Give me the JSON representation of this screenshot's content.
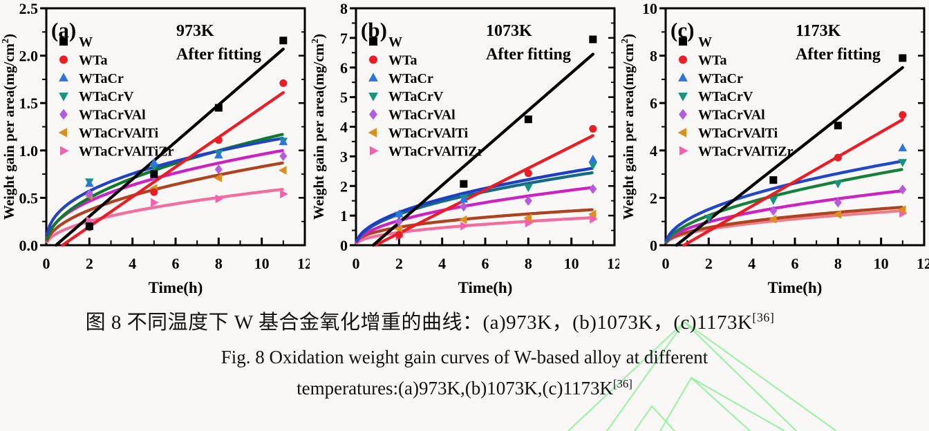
{
  "figure": {
    "caption_zh": "图 8 不同温度下 W 基合金氧化增重的曲线：(a)973K，(b)1073K，(c)1173K",
    "caption_en_line1": "Fig. 8 Oxidation weight gain curves of W-based alloy at different",
    "caption_en_line2": "temperatures:(a)973K,(b)1073K,(c)1173K",
    "caption_ref": "[36]"
  },
  "watermark": {
    "color": "#8df09b",
    "lines": [
      "878,624 990,466 1152,624",
      "990,466 1210,624",
      "990,466 822,624",
      "955,624 1000,547 1085,624",
      "1000,547 1135,624",
      "918,624 943,588 976,624"
    ]
  },
  "chart_data": [
    {
      "type": "line",
      "panel_label": "(a)",
      "title": "973K",
      "subtitle": "After fitting",
      "xlabel": "Time(h)",
      "ylabel_main": "Weight gain per area(mg/cm",
      "ylabel_sup": "2",
      "ylabel_close": ")",
      "xlim": [
        0,
        12
      ],
      "ylim": [
        0,
        2.5
      ],
      "xticks": [
        0,
        2,
        4,
        6,
        8,
        10,
        12
      ],
      "yticks": [
        0,
        0.5,
        1,
        1.5,
        2,
        2.5
      ],
      "ytick_labels": [
        "0.0",
        "0.5",
        "1.0",
        "1.5",
        "2.0",
        "2.5"
      ],
      "x_minor_step": 1,
      "y_minor_step": 0.25,
      "series": [
        {
          "name": "W",
          "marker": "square",
          "marker_color": "#000000",
          "fit_color": "#000000",
          "fit": {
            "type": "linear",
            "x_start": 0.45,
            "x_end": 11,
            "y_end": 2.07
          },
          "x": [
            2,
            5,
            8,
            11
          ],
          "y": [
            0.2,
            0.75,
            1.45,
            2.16
          ]
        },
        {
          "name": "WTa",
          "marker": "circle",
          "marker_color": "#ea1c24",
          "fit_color": "#ea1c24",
          "fit": {
            "type": "linear",
            "x_start": 0.75,
            "x_end": 11,
            "y_end": 1.61
          },
          "x": [
            2,
            5,
            8,
            11
          ],
          "y": [
            0.19,
            0.56,
            1.11,
            1.71
          ]
        },
        {
          "name": "WTaCr",
          "marker": "triangle-up",
          "marker_color": "#2e74e0",
          "fit_color": "#2244c4",
          "fit": {
            "type": "power",
            "a": 0.433,
            "b": 0.4
          },
          "x": [
            2,
            5,
            8,
            11
          ],
          "y": [
            0.65,
            0.87,
            0.95,
            1.09
          ]
        },
        {
          "name": "WTaCrV",
          "marker": "triangle-down",
          "marker_color": "#15967c",
          "fit_color": "#0c7b2e",
          "fit": {
            "type": "power",
            "a": 0.353,
            "b": 0.5
          },
          "x": [
            2,
            5,
            8,
            11
          ],
          "y": [
            0.67,
            0.83,
            0.97,
            1.1
          ]
        },
        {
          "name": "WTaCrVAl",
          "marker": "diamond",
          "marker_color": "#b55bdd",
          "fit_color": "#cb22c4",
          "fit": {
            "type": "power",
            "a": 0.34,
            "b": 0.45
          },
          "x": [
            2,
            5,
            8,
            11
          ],
          "y": [
            0.54,
            0.73,
            0.8,
            0.94
          ]
        },
        {
          "name": "WTaCrVAlTi",
          "marker": "triangle-left",
          "marker_color": "#dc8f1e",
          "fit_color": "#ad431f",
          "fit": {
            "type": "power",
            "a": 0.262,
            "b": 0.5
          },
          "x": [
            2,
            5,
            8,
            11
          ],
          "y": [
            0.52,
            0.6,
            0.71,
            0.79
          ]
        },
        {
          "name": "WTaCrVAlTiZr",
          "marker": "triangle-right",
          "marker_color": "#f55fb0",
          "fit_color": "#f26e9e",
          "fit": {
            "type": "power",
            "a": 0.178,
            "b": 0.5
          },
          "x": [
            2,
            5,
            8,
            11
          ],
          "y": [
            0.26,
            0.45,
            0.49,
            0.54
          ]
        }
      ]
    },
    {
      "type": "line",
      "panel_label": "(b)",
      "title": "1073K",
      "subtitle": "After fitting",
      "xlabel": "Time(h)",
      "ylabel_main": "Weight gain per area(mg/cm",
      "ylabel_sup": "2",
      "ylabel_close": ")",
      "xlim": [
        0,
        12
      ],
      "ylim": [
        0,
        8
      ],
      "xticks": [
        0,
        2,
        4,
        6,
        8,
        10,
        12
      ],
      "yticks": [
        0,
        1,
        2,
        3,
        4,
        5,
        6,
        7,
        8
      ],
      "ytick_labels": [
        "0",
        "1",
        "2",
        "3",
        "4",
        "5",
        "6",
        "7",
        "8"
      ],
      "x_minor_step": 1,
      "y_minor_step": 0.5,
      "series": [
        {
          "name": "W",
          "marker": "square",
          "marker_color": "#000000",
          "fit_color": "#000000",
          "fit": {
            "type": "linear",
            "x_start": 0.8,
            "x_end": 11,
            "y_end": 6.45
          },
          "x": [
            5,
            8,
            11
          ],
          "y": [
            2.07,
            4.25,
            6.95
          ]
        },
        {
          "name": "WTa",
          "marker": "circle",
          "marker_color": "#ea1c24",
          "fit_color": "#ea1c24",
          "fit": {
            "type": "linear",
            "x_start": 0.9,
            "x_end": 11,
            "y_end": 3.7
          },
          "x": [
            2,
            8,
            11
          ],
          "y": [
            0.35,
            2.43,
            3.93
          ]
        },
        {
          "name": "WTaCr",
          "marker": "triangle-up",
          "marker_color": "#2e74e0",
          "fit_color": "#1c3ec6",
          "fit": {
            "type": "power",
            "a": 0.784,
            "b": 0.5
          },
          "x": [
            2,
            5,
            11
          ],
          "y": [
            1.05,
            1.55,
            2.9
          ]
        },
        {
          "name": "WTaCrV",
          "marker": "triangle-down",
          "marker_color": "#15967c",
          "fit_color": "#136b85",
          "fit": {
            "type": "power",
            "a": 0.739,
            "b": 0.5
          },
          "x": [
            2,
            5,
            8,
            11
          ],
          "y": [
            1.02,
            1.6,
            1.95,
            2.7
          ]
        },
        {
          "name": "WTaCrVAl",
          "marker": "diamond",
          "marker_color": "#b55bdd",
          "fit_color": "#cb22c4",
          "fit": {
            "type": "power",
            "a": 0.588,
            "b": 0.5
          },
          "x": [
            2,
            5,
            8,
            11
          ],
          "y": [
            0.8,
            1.3,
            1.5,
            1.9
          ]
        },
        {
          "name": "WTaCrVAlTi",
          "marker": "triangle-left",
          "marker_color": "#dc8f1e",
          "fit_color": "#ad431f",
          "fit": {
            "type": "power",
            "a": 0.46,
            "b": 0.4
          },
          "x": [
            2,
            5,
            8,
            11
          ],
          "y": [
            0.55,
            0.86,
            0.92,
            1.05
          ]
        },
        {
          "name": "WTaCrVAlTiZr",
          "marker": "triangle-right",
          "marker_color": "#f55fb0",
          "fit_color": "#f26e9e",
          "fit": {
            "type": "power",
            "a": 0.316,
            "b": 0.45
          },
          "x": [
            2,
            5,
            8,
            11
          ],
          "y": [
            0.3,
            0.65,
            0.75,
            0.88
          ]
        }
      ]
    },
    {
      "type": "line",
      "panel_label": "(c)",
      "title": "1173K",
      "subtitle": "After fitting",
      "xlabel": "Time(h)",
      "ylabel_main": "Weight gain per area(mg/cm",
      "ylabel_sup": "2",
      "ylabel_close": ")",
      "xlim": [
        0,
        12
      ],
      "ylim": [
        0,
        10
      ],
      "xticks": [
        0,
        2,
        4,
        6,
        8,
        10,
        12
      ],
      "yticks": [
        0,
        2,
        4,
        6,
        8,
        10
      ],
      "ytick_labels": [
        "0",
        "2",
        "4",
        "6",
        "8",
        "10"
      ],
      "x_minor_step": 1,
      "y_minor_step": 1,
      "series": [
        {
          "name": "W",
          "marker": "square",
          "marker_color": "#000000",
          "fit_color": "#000000",
          "fit": {
            "type": "linear",
            "x_start": 0.5,
            "x_end": 11,
            "y_end": 7.5
          },
          "x": [
            5,
            8,
            11
          ],
          "y": [
            2.75,
            5.05,
            7.9
          ]
        },
        {
          "name": "WTa",
          "marker": "circle",
          "marker_color": "#ea1c24",
          "fit_color": "#ea1c24",
          "fit": {
            "type": "linear",
            "x_start": 0.85,
            "x_end": 11,
            "y_end": 5.3
          },
          "x": [
            8,
            11
          ],
          "y": [
            3.7,
            5.5
          ]
        },
        {
          "name": "WTaCr",
          "marker": "triangle-up",
          "marker_color": "#2e74e0",
          "fit_color": "#2046cc",
          "fit": {
            "type": "power",
            "a": 1.07,
            "b": 0.5
          },
          "x": [
            11
          ],
          "y": [
            4.1
          ]
        },
        {
          "name": "WTaCrV",
          "marker": "triangle-down",
          "marker_color": "#15967c",
          "fit_color": "#15803a",
          "fit": {
            "type": "power",
            "a": 0.856,
            "b": 0.55
          },
          "x": [
            2,
            5,
            8,
            11
          ],
          "y": [
            1.15,
            1.9,
            2.6,
            3.5
          ]
        },
        {
          "name": "WTaCrVAl",
          "marker": "diamond",
          "marker_color": "#b55bdd",
          "fit_color": "#cb22c4",
          "fit": {
            "type": "power",
            "a": 0.693,
            "b": 0.5
          },
          "x": [
            5,
            8,
            11
          ],
          "y": [
            1.45,
            1.8,
            2.35
          ]
        },
        {
          "name": "WTaCrVAlTi",
          "marker": "triangle-left",
          "marker_color": "#dc8f1e",
          "fit_color": "#ad431f",
          "fit": {
            "type": "power",
            "a": 0.545,
            "b": 0.45
          },
          "x": [
            5,
            8,
            11
          ],
          "y": [
            1.1,
            1.3,
            1.5
          ]
        },
        {
          "name": "WTaCrVAlTiZr",
          "marker": "triangle-right",
          "marker_color": "#f55fb0",
          "fit_color": "#ee7d88",
          "fit": {
            "type": "power",
            "a": 0.494,
            "b": 0.45
          },
          "x": [
            11
          ],
          "y": [
            1.35
          ]
        }
      ]
    }
  ]
}
